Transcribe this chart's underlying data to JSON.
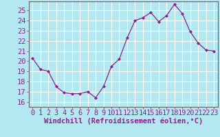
{
  "x": [
    0,
    1,
    2,
    3,
    4,
    5,
    6,
    7,
    8,
    9,
    10,
    11,
    12,
    13,
    14,
    15,
    16,
    17,
    18,
    19,
    20,
    21,
    22,
    23
  ],
  "y": [
    20.3,
    19.2,
    19.0,
    17.5,
    16.9,
    16.8,
    16.8,
    17.0,
    16.4,
    17.5,
    19.5,
    20.2,
    22.3,
    24.0,
    24.3,
    24.8,
    23.9,
    24.5,
    25.6,
    24.7,
    22.9,
    21.8,
    21.1,
    21.0
  ],
  "line_color": "#882288",
  "marker": "D",
  "marker_size": 2.0,
  "bg_color": "#b3e8f0",
  "grid_color": "#ffffff",
  "xlabel": "Windchill (Refroidissement éolien,°C)",
  "ylabel_ticks": [
    16,
    17,
    18,
    19,
    20,
    21,
    22,
    23,
    24,
    25
  ],
  "xlim": [
    -0.5,
    23.5
  ],
  "ylim": [
    15.5,
    25.9
  ],
  "xlabel_fontsize": 7.5,
  "tick_fontsize": 7.5
}
